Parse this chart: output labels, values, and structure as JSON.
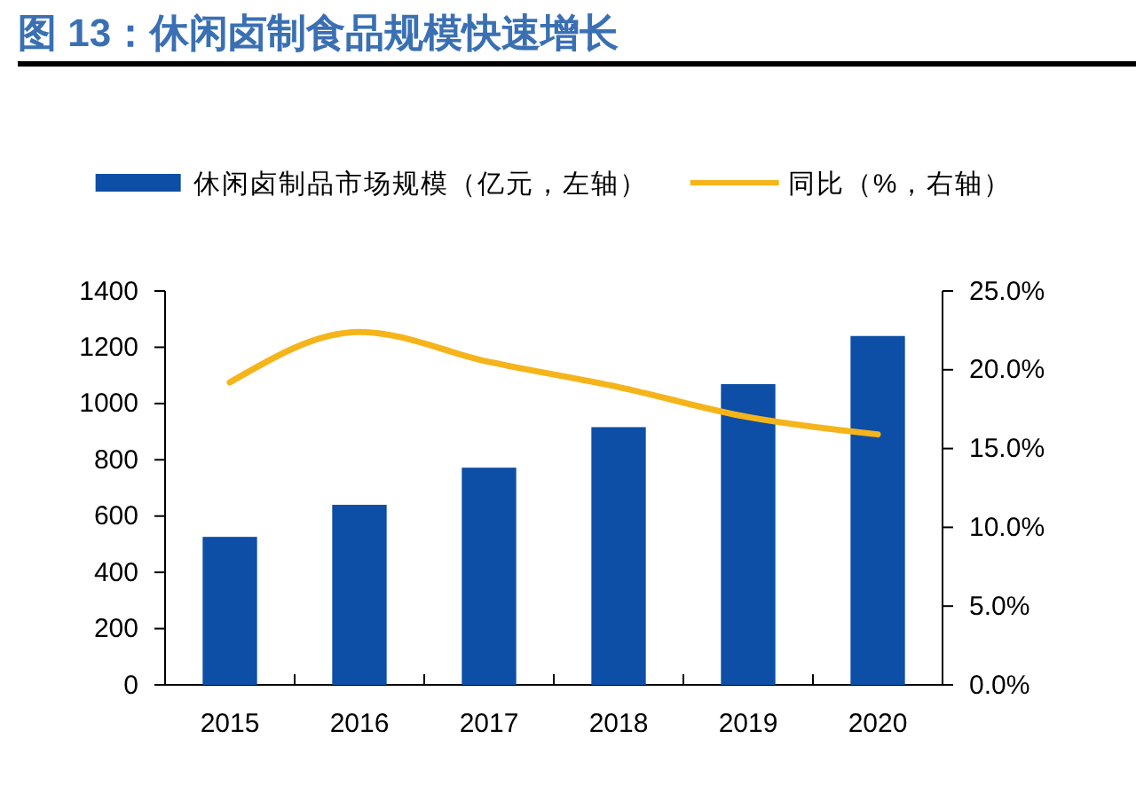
{
  "chart_data": {
    "type": "bar",
    "title": "图 13：休闲卤制食品规模快速增长",
    "categories": [
      "2015",
      "2016",
      "2017",
      "2018",
      "2019",
      "2020"
    ],
    "series": [
      {
        "name": "休闲卤制品市场规模（亿元，左轴）",
        "color": "#0d4ea6",
        "values": [
          526,
          640,
          772,
          916,
          1069,
          1240
        ]
      },
      {
        "name": "同比（%，右轴）",
        "type": "line",
        "axis": "y2",
        "color": "#f5b41a",
        "values": [
          19.2,
          22.4,
          20.5,
          18.9,
          17.0,
          15.9
        ]
      }
    ],
    "ylim": [
      0,
      1400
    ],
    "yticks": [
      0,
      200,
      400,
      600,
      800,
      1000,
      1200,
      1400
    ],
    "y2lim": [
      0,
      25
    ],
    "y2ticks": [
      {
        "value": 0,
        "label": "0.0%"
      },
      {
        "value": 5,
        "label": "5.0%"
      },
      {
        "value": 10,
        "label": "10.0%"
      },
      {
        "value": 15,
        "label": "15.0%"
      },
      {
        "value": 20,
        "label": "20.0%"
      },
      {
        "value": 25,
        "label": "25.0%"
      }
    ],
    "legend": "top"
  }
}
